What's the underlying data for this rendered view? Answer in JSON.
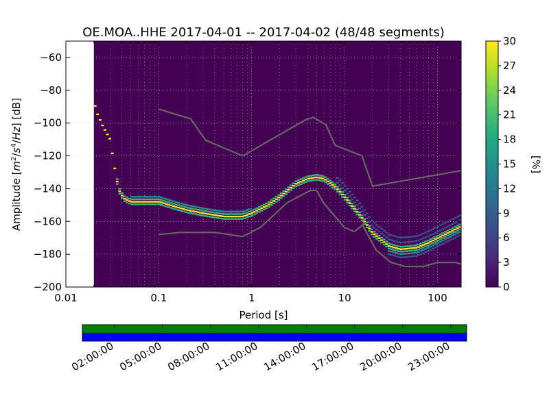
{
  "chart_data": {
    "type": "heatmap",
    "title": "OE.MOA..HHE   2017-04-01 -- 2017-04-02  (48/48 segments)",
    "xlabel": "Period [s]",
    "ylabel_parts": [
      "Amplitude [",
      "m",
      "2",
      "/",
      "s",
      "4",
      "/",
      "Hz",
      "] [dB]"
    ],
    "x_scale": "log",
    "xlim": [
      0.01,
      180
    ],
    "ylim": [
      -200,
      -50
    ],
    "x_ticks": [
      {
        "value": 0.01,
        "label": "0.01"
      },
      {
        "value": 0.1,
        "label": "0.1"
      },
      {
        "value": 1,
        "label": "1"
      },
      {
        "value": 10,
        "label": "10"
      },
      {
        "value": 100,
        "label": "100"
      }
    ],
    "y_ticks": [
      {
        "value": -60,
        "label": "−60"
      },
      {
        "value": -80,
        "label": "−80"
      },
      {
        "value": -100,
        "label": "−100"
      },
      {
        "value": -120,
        "label": "−120"
      },
      {
        "value": -140,
        "label": "−140"
      },
      {
        "value": -160,
        "label": "−160"
      },
      {
        "value": -180,
        "label": "−180"
      },
      {
        "value": -200,
        "label": "−200"
      }
    ],
    "data_start_period": 0.02,
    "colorbar": {
      "label": "[%]",
      "range": [
        0,
        30
      ],
      "ticks": [
        {
          "value": 0,
          "label": "0"
        },
        {
          "value": 3,
          "label": "3"
        },
        {
          "value": 6,
          "label": "6"
        },
        {
          "value": 9,
          "label": "9"
        },
        {
          "value": 12,
          "label": "12"
        },
        {
          "value": 15,
          "label": "15"
        },
        {
          "value": 18,
          "label": "18"
        },
        {
          "value": 21,
          "label": "21"
        },
        {
          "value": 24,
          "label": "24"
        },
        {
          "value": 27,
          "label": "27"
        },
        {
          "value": 30,
          "label": "30"
        }
      ]
    },
    "ridge": {
      "name": "psd-mode",
      "points": [
        [
          0.02,
          -87
        ],
        [
          0.022,
          -95
        ],
        [
          0.025,
          -102
        ],
        [
          0.028,
          -107
        ],
        [
          0.03,
          -110
        ],
        [
          0.032,
          -121
        ],
        [
          0.035,
          -134
        ],
        [
          0.038,
          -142
        ],
        [
          0.042,
          -146
        ],
        [
          0.05,
          -148
        ],
        [
          0.07,
          -148
        ],
        [
          0.1,
          -148
        ],
        [
          0.15,
          -151
        ],
        [
          0.2,
          -153
        ],
        [
          0.3,
          -155
        ],
        [
          0.5,
          -157
        ],
        [
          0.8,
          -157
        ],
        [
          1.0,
          -155
        ],
        [
          1.5,
          -150
        ],
        [
          2.0,
          -145
        ],
        [
          3.0,
          -137
        ],
        [
          4.0,
          -134
        ],
        [
          5.0,
          -133
        ],
        [
          6.0,
          -134
        ],
        [
          8.0,
          -139
        ],
        [
          10.0,
          -145
        ],
        [
          15.0,
          -157
        ],
        [
          20.0,
          -167
        ],
        [
          30.0,
          -175
        ],
        [
          40.0,
          -177
        ],
        [
          60.0,
          -176
        ],
        [
          80.0,
          -173
        ],
        [
          120.0,
          -168
        ],
        [
          180.0,
          -163
        ]
      ]
    },
    "noise_models": [
      {
        "name": "high-noise-model",
        "color": "#666666",
        "points": [
          [
            0.1,
            -91.5
          ],
          [
            0.22,
            -97.4
          ],
          [
            0.32,
            -110.5
          ],
          [
            0.8,
            -120
          ],
          [
            3.8,
            -98
          ],
          [
            4.6,
            -96.5
          ],
          [
            6.3,
            -101
          ],
          [
            7.9,
            -113.5
          ],
          [
            15.4,
            -120
          ],
          [
            20.0,
            -138.5
          ],
          [
            180.0,
            -129
          ]
        ]
      },
      {
        "name": "low-noise-model",
        "color": "#666666",
        "points": [
          [
            0.1,
            -168
          ],
          [
            0.17,
            -166.7
          ],
          [
            0.4,
            -166.7
          ],
          [
            0.8,
            -169.2
          ],
          [
            1.24,
            -163.7
          ],
          [
            2.4,
            -148.6
          ],
          [
            4.3,
            -141.1
          ],
          [
            5.0,
            -141.1
          ],
          [
            6.0,
            -149
          ],
          [
            10.0,
            -163.8
          ],
          [
            12.8,
            -166.2
          ],
          [
            15.6,
            -162.1
          ],
          [
            21.9,
            -177.5
          ],
          [
            31.6,
            -185
          ],
          [
            45.0,
            -187.5
          ],
          [
            70.0,
            -187.5
          ],
          [
            101.0,
            -185
          ],
          [
            154.0,
            -185
          ],
          [
            180.0,
            -186
          ]
        ]
      }
    ]
  },
  "timeline": {
    "tick_labels": [
      "02:00:00",
      "05:00:00",
      "08:00:00",
      "11:00:00",
      "14:00:00",
      "17:00:00",
      "20:00:00",
      "23:00:00"
    ],
    "top_color": "#008000",
    "bottom_color": "#0000ff"
  },
  "colors": {
    "background": "#440154",
    "ridge_peak": "#fde725",
    "ridge_side": "#35b779",
    "ridge_low": "#21918c",
    "spread_low": "#3b528b"
  }
}
